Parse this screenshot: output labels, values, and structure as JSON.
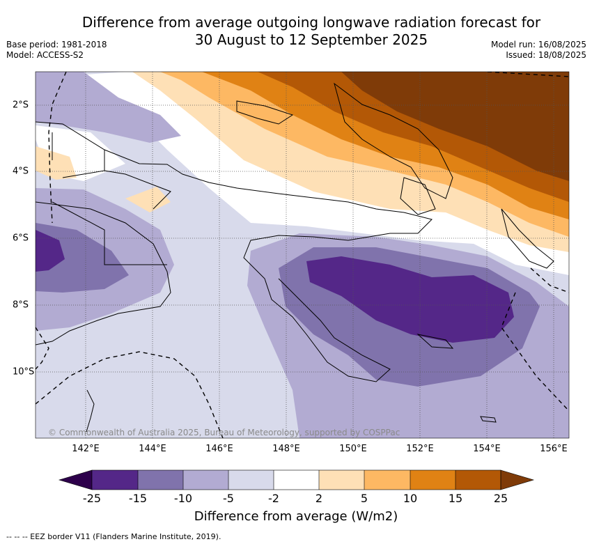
{
  "title": {
    "line1": "Difference from average outgoing longwave radiation forecast for",
    "line2": "30 August to 12 September 2025"
  },
  "meta_left": {
    "base_period": "Base period: 1981-2018",
    "model": "Model: ACCESS-S2"
  },
  "meta_right": {
    "model_run": "Model run: 16/08/2025",
    "issued": "Issued: 18/08/2025"
  },
  "map": {
    "lon_range": [
      140.5,
      156.5
    ],
    "lat_range": [
      -11.9,
      -1.0
    ],
    "lon_ticks": [
      "142°E",
      "144°E",
      "146°E",
      "148°E",
      "150°E",
      "152°E",
      "154°E",
      "156°E"
    ],
    "lat_ticks": [
      "2°S",
      "4°S",
      "6°S",
      "8°S",
      "10°S"
    ],
    "copyright": "© Commonwealth of Australia 2025, Bureau of Meteorology, supported by COSPPac",
    "colors": {
      "lt_minus25": "#2d004b",
      "minus25_to_minus15": "#542788",
      "minus15_to_minus10": "#8073ac",
      "minus10_to_minus5": "#b2abd2",
      "minus5_to_minus2": "#d8daeb",
      "minus2_to_2": "#ffffff",
      "2_to_5": "#fee0b6",
      "5_to_10": "#fdb863",
      "10_to_15": "#e08214",
      "15_to_25": "#b35806",
      "gt_25": "#7f3b08"
    }
  },
  "colorbar": {
    "ticks": [
      "-25",
      "-15",
      "-10",
      "-5",
      "-2",
      "2",
      "5",
      "10",
      "15",
      "25"
    ],
    "label": "Difference from average (W/m2)"
  },
  "footnote": "--  --  -- EEZ border V11 (Flanders Marine Institute, 2019)."
}
